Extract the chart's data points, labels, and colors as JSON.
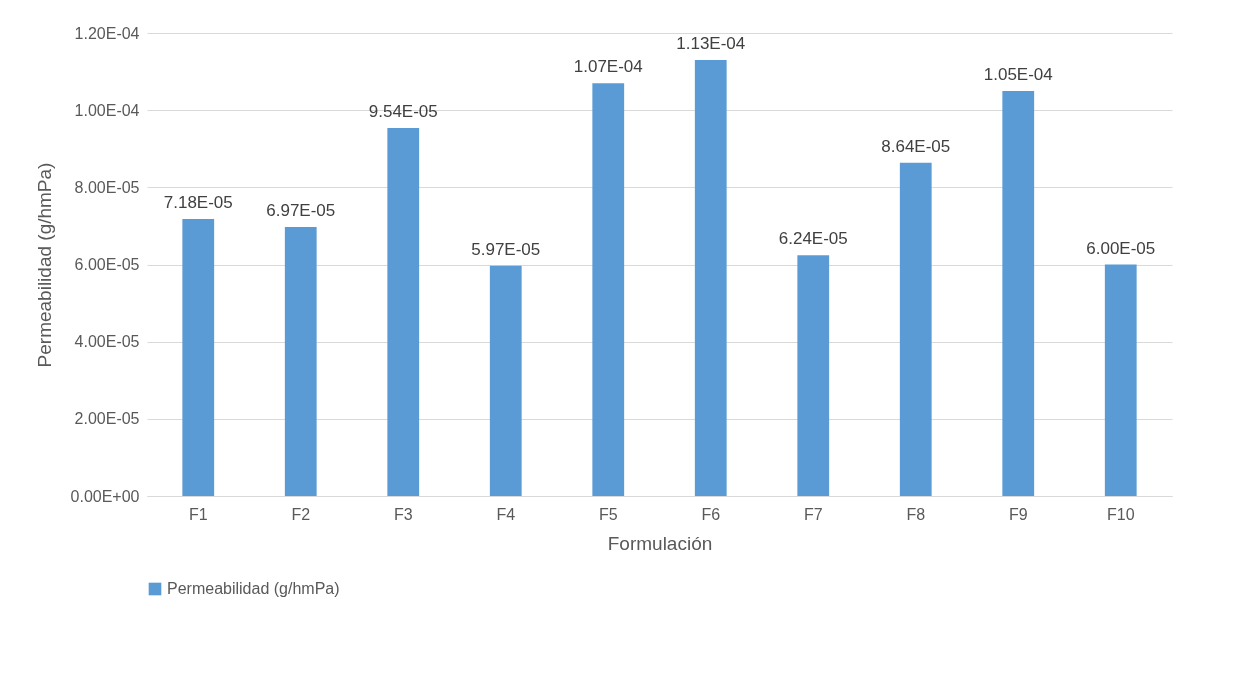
{
  "chart_data": {
    "type": "bar",
    "xlabel": "Formulación",
    "ylabel": "Permeabilidad (g/hmPa)",
    "categories": [
      "F1",
      "F2",
      "F3",
      "F4",
      "F5",
      "F6",
      "F7",
      "F8",
      "F9",
      "F10"
    ],
    "series": [
      {
        "name": "Permeabilidad (g/hmPa)",
        "color": "#5b9bd5",
        "values": [
          7.18e-05,
          6.97e-05,
          9.54e-05,
          5.97e-05,
          0.000107,
          0.000113,
          6.24e-05,
          8.64e-05,
          0.000105,
          6e-05
        ],
        "value_labels": [
          "7.18E-05",
          "6.97E-05",
          "9.54E-05",
          "5.97E-05",
          "1.07E-04",
          "1.13E-04",
          "6.24E-05",
          "8.64E-05",
          "1.05E-04",
          "6.00E-05"
        ]
      }
    ],
    "ylim": [
      0,
      0.00012
    ],
    "yticks": [
      {
        "value": 0,
        "label": "0.00E+00"
      },
      {
        "value": 2e-05,
        "label": "2.00E-05"
      },
      {
        "value": 4e-05,
        "label": "4.00E-05"
      },
      {
        "value": 6e-05,
        "label": "6.00E-05"
      },
      {
        "value": 8e-05,
        "label": "8.00E-05"
      },
      {
        "value": 0.0001,
        "label": "1.00E-04"
      },
      {
        "value": 0.00012,
        "label": "1.20E-04"
      }
    ],
    "grid": "y",
    "legend": "bottom"
  }
}
